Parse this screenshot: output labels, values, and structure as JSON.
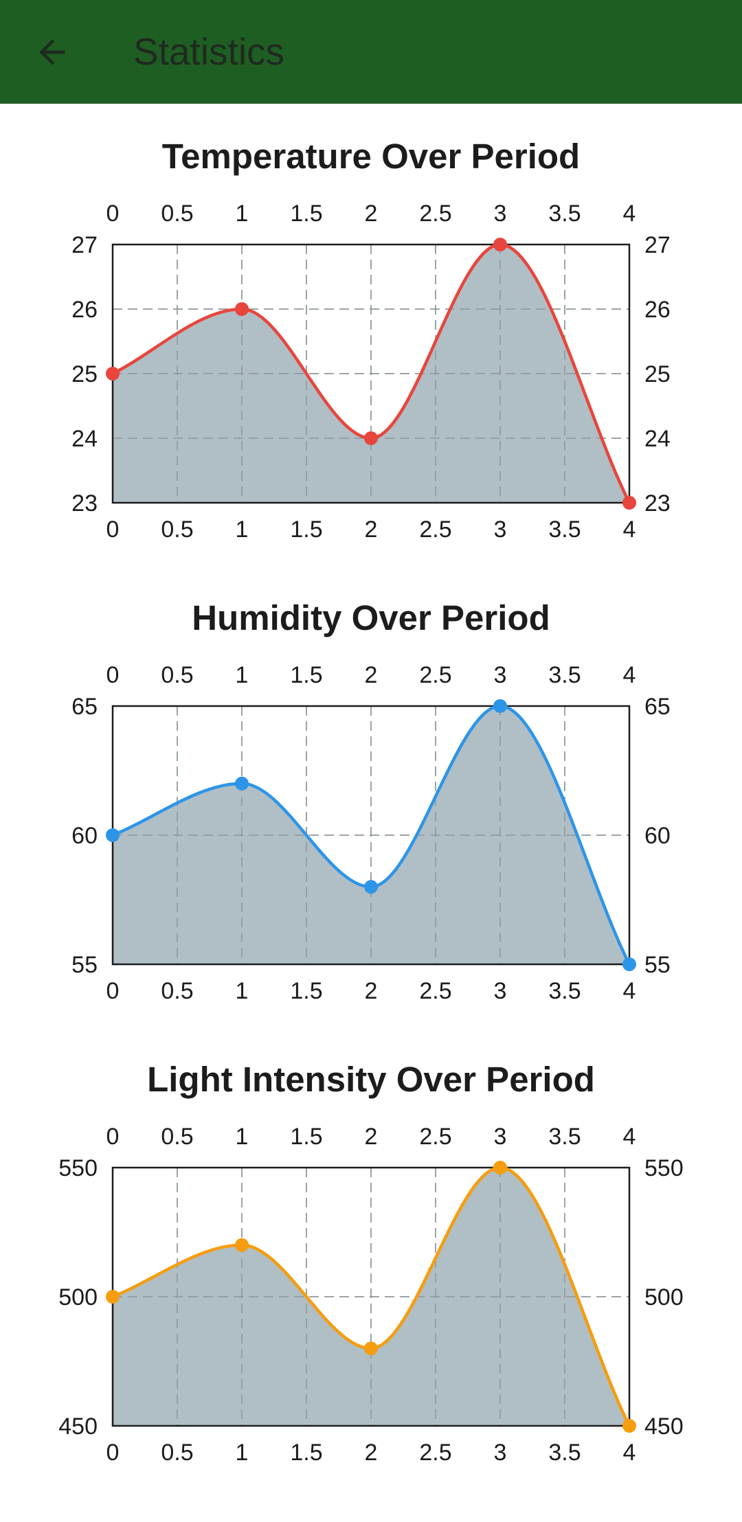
{
  "app_bar": {
    "title": "Statistics",
    "back_icon": "arrow-back-icon",
    "background": "#1e5e22"
  },
  "chart_data": [
    {
      "type": "area",
      "title": "Temperature Over Period",
      "x": [
        0,
        1,
        2,
        3,
        4
      ],
      "series": [
        {
          "values": [
            25,
            26,
            24,
            27,
            23
          ],
          "color": "#e8453c"
        }
      ],
      "xlim": [
        0,
        4
      ],
      "ylim": [
        23,
        27
      ],
      "x_ticks": [
        "0",
        "0.5",
        "1",
        "1.5",
        "2",
        "2.5",
        "3",
        "3.5",
        "4"
      ],
      "y_ticks": [
        "23",
        "24",
        "25",
        "26",
        "27"
      ],
      "fill_color": "#b0bec5",
      "grid": true
    },
    {
      "type": "area",
      "title": "Humidity Over Period",
      "x": [
        0,
        1,
        2,
        3,
        4
      ],
      "series": [
        {
          "values": [
            60,
            62,
            58,
            65,
            55
          ],
          "color": "#2d95e8"
        }
      ],
      "xlim": [
        0,
        4
      ],
      "ylim": [
        55,
        65
      ],
      "x_ticks": [
        "0",
        "0.5",
        "1",
        "1.5",
        "2",
        "2.5",
        "3",
        "3.5",
        "4"
      ],
      "y_ticks": [
        "55",
        "60",
        "65"
      ],
      "fill_color": "#b0bec5",
      "grid": true
    },
    {
      "type": "area",
      "title": "Light Intensity Over Period",
      "x": [
        0,
        1,
        2,
        3,
        4
      ],
      "series": [
        {
          "values": [
            500,
            520,
            480,
            550,
            450
          ],
          "color": "#f59d0e"
        }
      ],
      "xlim": [
        0,
        4
      ],
      "ylim": [
        450,
        550
      ],
      "x_ticks": [
        "0",
        "0.5",
        "1",
        "1.5",
        "2",
        "2.5",
        "3",
        "3.5",
        "4"
      ],
      "y_ticks": [
        "450",
        "500",
        "550"
      ],
      "fill_color": "#b0bec5",
      "grid": true
    }
  ]
}
